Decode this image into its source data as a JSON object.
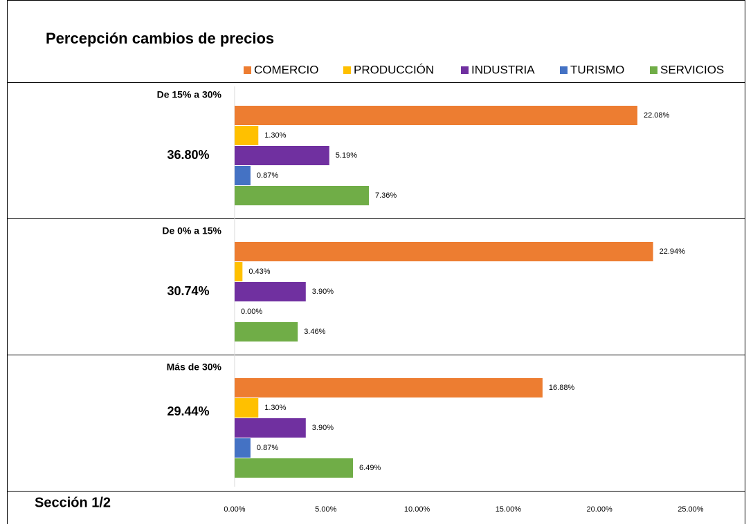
{
  "chart_data": {
    "type": "bar",
    "orientation": "horizontal",
    "title": "Percepción cambios de precios",
    "footer": "Sección 1/2",
    "categories": [
      "De 15% a 30%",
      "De 0% a 15%",
      "Más de 30%"
    ],
    "category_totals": {
      "values": [
        36.8,
        30.74,
        29.44
      ],
      "value_labels": [
        "36.80%",
        "30.74%",
        "29.44%"
      ]
    },
    "series": [
      {
        "name": "COMERCIO",
        "color": "#ed7d31",
        "values": [
          22.08,
          22.94,
          16.88
        ],
        "value_labels": [
          "22.08%",
          "22.94%",
          "16.88%"
        ]
      },
      {
        "name": "PRODUCCIÓN",
        "color": "#ffc000",
        "values": [
          1.3,
          0.43,
          1.3
        ],
        "value_labels": [
          "1.30%",
          "0.43%",
          "1.30%"
        ]
      },
      {
        "name": "INDUSTRIA",
        "color": "#7030a0",
        "values": [
          5.19,
          3.9,
          3.9
        ],
        "value_labels": [
          "5.19%",
          "3.90%",
          "3.90%"
        ]
      },
      {
        "name": "TURISMO",
        "color": "#4472c4",
        "values": [
          0.87,
          0,
          0.87
        ],
        "value_labels": [
          "0.87%",
          "0.00%",
          "0.87%"
        ]
      },
      {
        "name": "SERVICIOS",
        "color": "#70ad47",
        "values": [
          7.36,
          3.46,
          6.49
        ],
        "value_labels": [
          "7.36%",
          "3.46%",
          "6.49%"
        ]
      }
    ],
    "xlim": [
      0,
      28
    ],
    "xticks": [
      {
        "value": 0,
        "label": "0.00%"
      },
      {
        "value": 5,
        "label": "5.00%"
      },
      {
        "value": 10,
        "label": "10.00%"
      },
      {
        "value": 15,
        "label": "15.00%"
      },
      {
        "value": 20,
        "label": "20.00%"
      },
      {
        "value": 25,
        "label": "25.00%"
      }
    ],
    "legend": "top"
  }
}
